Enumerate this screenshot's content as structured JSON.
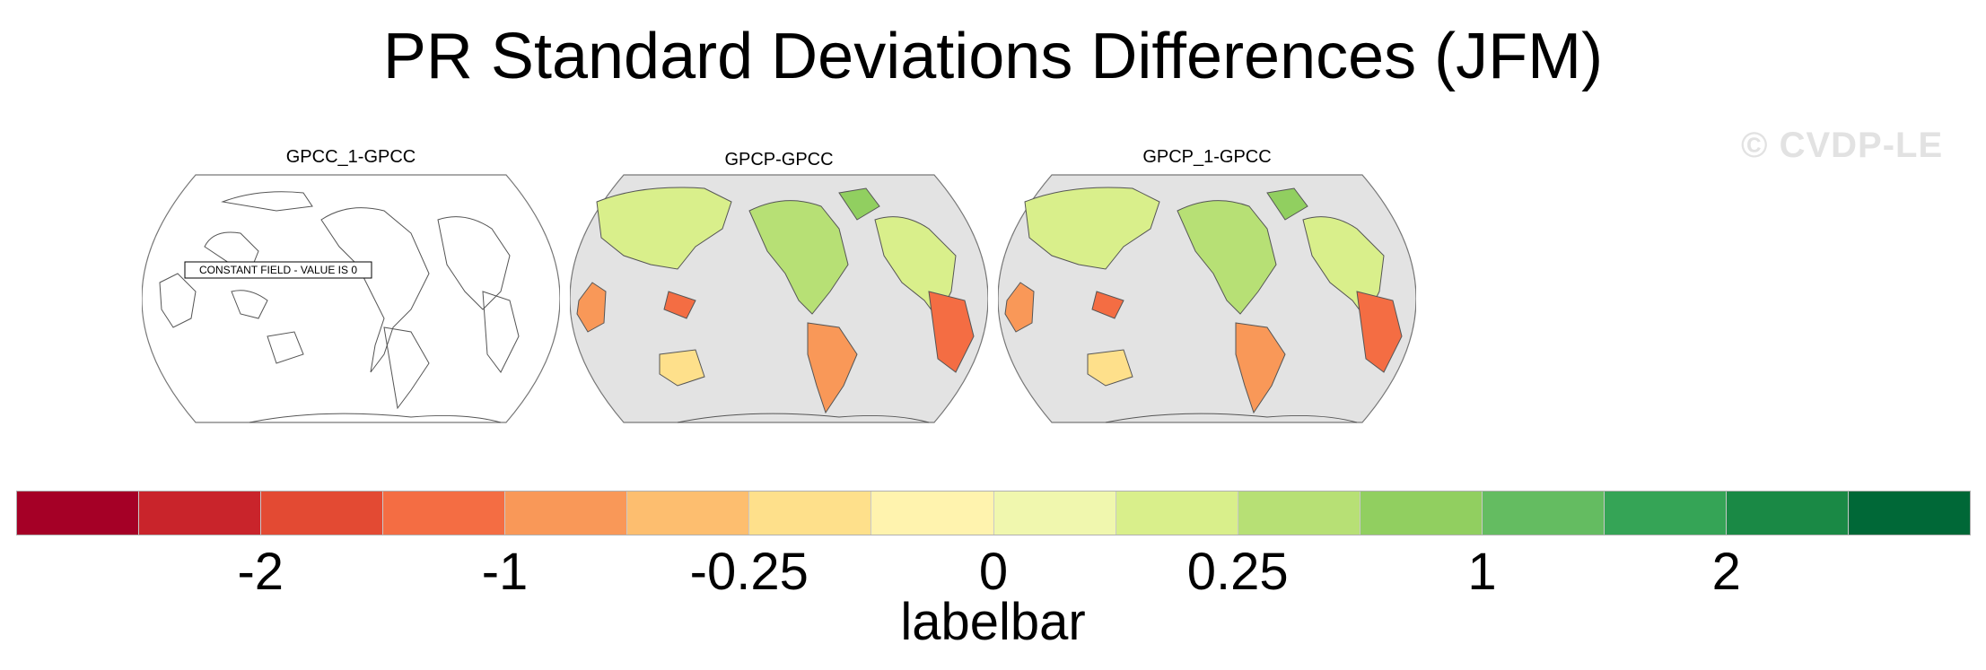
{
  "title": "PR Standard Deviations Differences (JFM)",
  "watermark": "© CVDP-LE",
  "panels": [
    {
      "title": "GPCC_1-GPCC",
      "note": "CONSTANT FIELD - VALUE IS 0",
      "filled": false
    },
    {
      "title": "GPCP-GPCC",
      "filled": true
    },
    {
      "title": "GPCP_1-GPCC",
      "filled": true
    }
  ],
  "colorbar": {
    "label": "labelbar",
    "colors": [
      "#a50026",
      "#c9242b",
      "#e34a33",
      "#f46d43",
      "#f99858",
      "#fdbe6f",
      "#fee08b",
      "#fff3ae",
      "#f0f7ae",
      "#d9ef8b",
      "#b7e075",
      "#91cf60",
      "#64bc61",
      "#35a456",
      "#1a8945",
      "#006837"
    ],
    "ticks": [
      {
        "label": "-2",
        "boundary": 2
      },
      {
        "label": "-1",
        "boundary": 4
      },
      {
        "label": "-0.25",
        "boundary": 6
      },
      {
        "label": "0",
        "boundary": 8
      },
      {
        "label": "0.25",
        "boundary": 10
      },
      {
        "label": "1",
        "boundary": 12
      },
      {
        "label": "2",
        "boundary": 14
      }
    ]
  },
  "style": {
    "ocean": "#e3e3e3",
    "coast": "#555555"
  }
}
